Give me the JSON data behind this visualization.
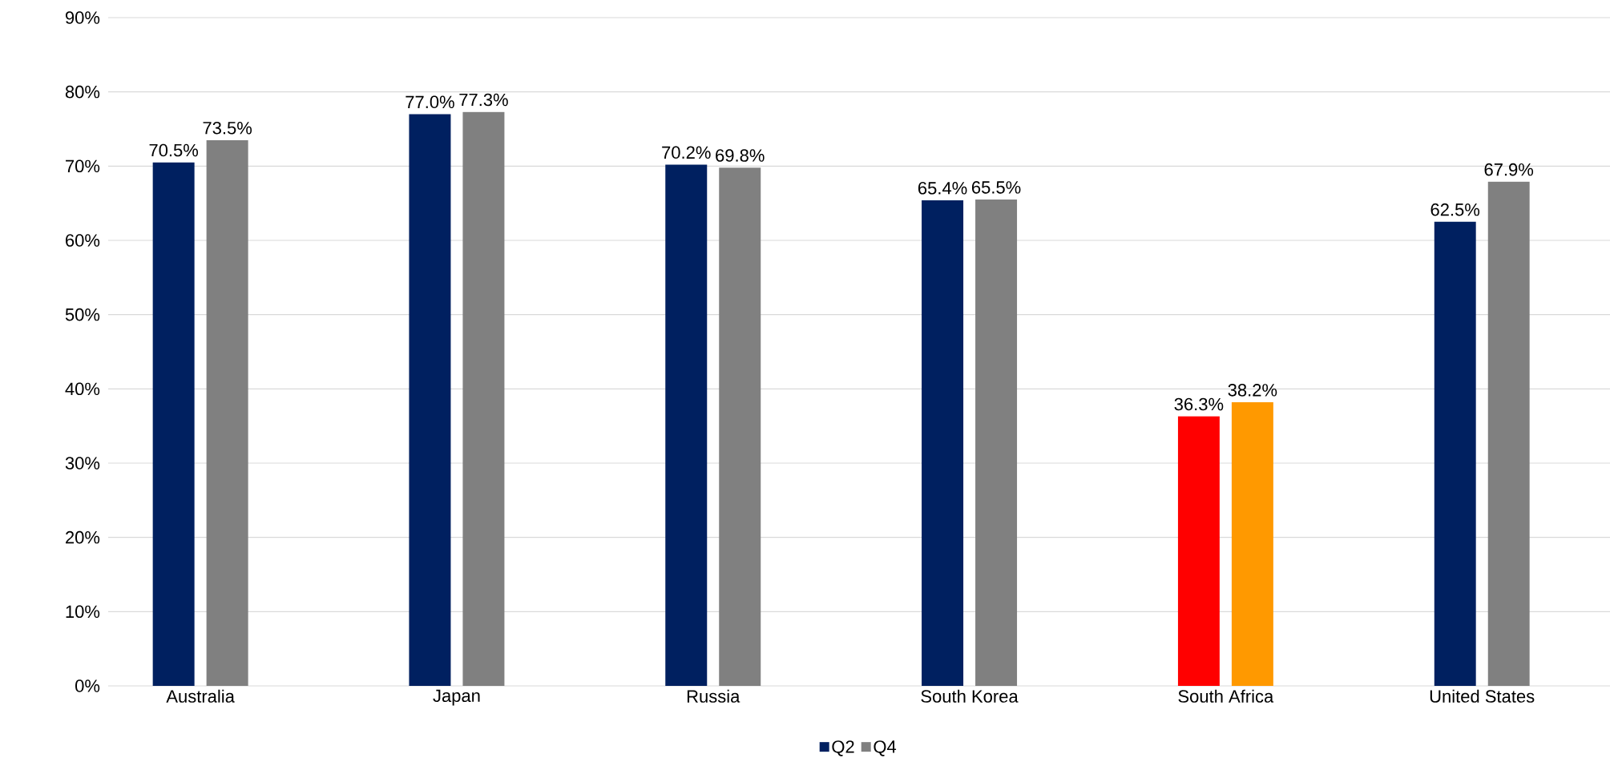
{
  "chart_data": {
    "type": "bar",
    "categories": [
      "Australia",
      "Japan",
      "Russia",
      "South Korea",
      "South Africa",
      "United States"
    ],
    "series": [
      {
        "name": "Q2",
        "color": "#002060",
        "colors": [
          "#002060",
          "#002060",
          "#002060",
          "#002060",
          "#ff0000",
          "#002060"
        ],
        "values": [
          70.5,
          77.0,
          70.2,
          65.4,
          36.3,
          62.5
        ],
        "value_labels": [
          "70.5%",
          "77.0%",
          "70.2%",
          "65.4%",
          "36.3%",
          "62.5%"
        ]
      },
      {
        "name": "Q4",
        "color": "#808080",
        "colors": [
          "#808080",
          "#808080",
          "#808080",
          "#808080",
          "#ff9900",
          "#808080"
        ],
        "values": [
          73.5,
          77.3,
          69.8,
          65.5,
          38.2,
          67.9
        ],
        "value_labels": [
          "73.5%",
          "77.3%",
          "69.8%",
          "65.5%",
          "38.2%",
          "67.9%"
        ]
      }
    ],
    "ylim": [
      0,
      90
    ],
    "yticks": [
      {
        "value": 0,
        "label": "0%"
      },
      {
        "value": 10,
        "label": "10%"
      },
      {
        "value": 20,
        "label": "20%"
      },
      {
        "value": 30,
        "label": "30%"
      },
      {
        "value": 40,
        "label": "40%"
      },
      {
        "value": 50,
        "label": "50%"
      },
      {
        "value": 60,
        "label": "60%"
      },
      {
        "value": 70,
        "label": "70%"
      },
      {
        "value": 80,
        "label": "80%"
      },
      {
        "value": 90,
        "label": "90%"
      }
    ],
    "grid": "y",
    "legend": "bottom"
  }
}
